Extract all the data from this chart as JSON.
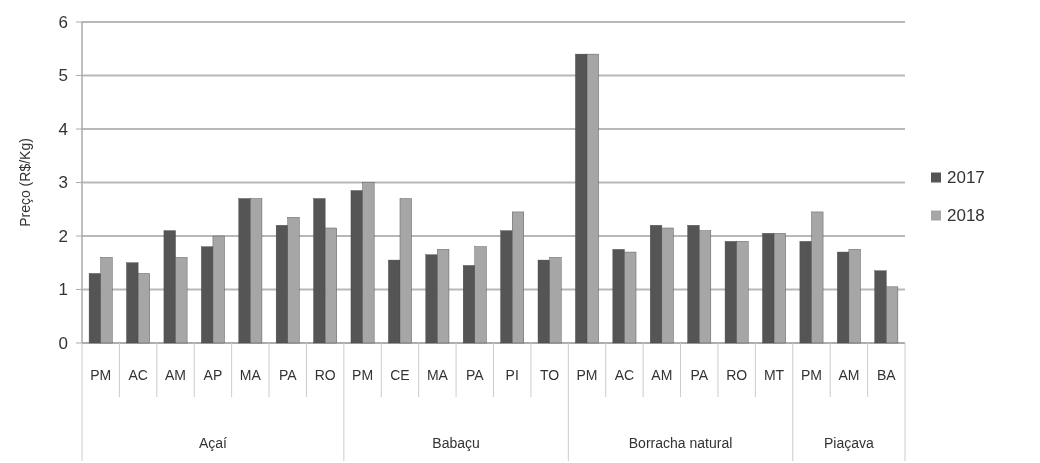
{
  "chart_data": {
    "type": "bar",
    "ylabel": "Preço (R$/Kg)",
    "categories": [
      "PM",
      "AC",
      "AM",
      "AP",
      "MA",
      "PA",
      "RO",
      "PM",
      "CE",
      "MA",
      "PA",
      "PI",
      "TO",
      "PM",
      "AC",
      "AM",
      "PA",
      "RO",
      "MT",
      "PM",
      "AM",
      "BA"
    ],
    "series": [
      {
        "name": "2017",
        "color": "#555555",
        "values": [
          1.3,
          1.5,
          2.1,
          1.8,
          2.7,
          2.2,
          2.7,
          2.85,
          1.55,
          1.65,
          1.45,
          2.1,
          1.55,
          5.4,
          1.75,
          2.2,
          2.2,
          1.9,
          2.05,
          1.9,
          1.7,
          1.35
        ]
      },
      {
        "name": "2018",
        "color": "#a6a6a6",
        "values": [
          1.6,
          1.3,
          1.6,
          2.0,
          2.7,
          2.35,
          2.15,
          3.0,
          2.7,
          1.75,
          1.8,
          2.45,
          1.6,
          5.4,
          1.7,
          2.15,
          2.1,
          1.9,
          2.05,
          2.45,
          1.75,
          1.05
        ]
      }
    ],
    "annotations": [
      "Açaí",
      "Babaçu",
      "Borracha natural",
      "Piaçava"
    ],
    "ylim": [
      0,
      6
    ],
    "yticks": [
      0,
      1,
      2,
      3,
      4,
      5,
      6
    ],
    "grid": "y",
    "legend": "right"
  }
}
